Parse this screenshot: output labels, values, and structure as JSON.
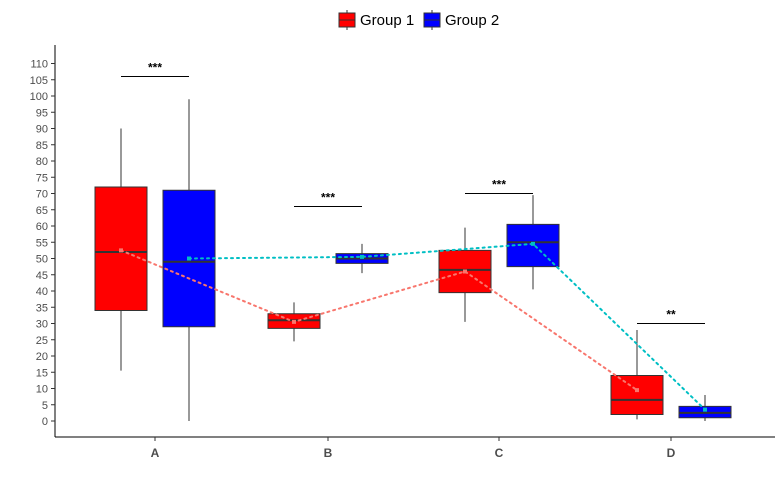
{
  "chart_data": {
    "type": "box",
    "categories": [
      "A",
      "B",
      "C",
      "D"
    ],
    "ylim": [
      -5,
      115
    ],
    "yticks": [
      0,
      5,
      10,
      15,
      20,
      25,
      30,
      35,
      40,
      45,
      50,
      55,
      60,
      65,
      70,
      75,
      80,
      85,
      90,
      95,
      100,
      105,
      110
    ],
    "grid": false,
    "legend_position": "top",
    "series": [
      {
        "name": "Group 1",
        "color": "#ff0000",
        "mean_line_color": "#f8766d",
        "boxes": [
          {
            "min": 15.5,
            "q1": 34,
            "median": 52,
            "q3": 72,
            "max": 90,
            "mean": 52.5
          },
          {
            "min": 24.5,
            "q1": 28.5,
            "median": 31,
            "q3": 33,
            "max": 36.5,
            "mean": 30.5
          },
          {
            "min": 30.5,
            "q1": 39.5,
            "median": 46.5,
            "q3": 52.5,
            "max": 59.5,
            "mean": 46
          },
          {
            "min": 0.5,
            "q1": 2,
            "median": 6.5,
            "q3": 14,
            "max": 28,
            "mean": 9.5
          }
        ]
      },
      {
        "name": "Group 2",
        "color": "#0000ff",
        "mean_line_color": "#00bfc4",
        "boxes": [
          {
            "min": 0,
            "q1": 29,
            "median": 49,
            "q3": 71,
            "max": 99,
            "mean": 50
          },
          {
            "min": 45.5,
            "q1": 48.5,
            "median": 50,
            "q3": 51.5,
            "max": 54.5,
            "mean": 50.5
          },
          {
            "min": 40.5,
            "q1": 47.5,
            "median": 55,
            "q3": 60.5,
            "max": 69.5,
            "mean": 54.5
          },
          {
            "min": 0,
            "q1": 1,
            "median": 2.5,
            "q3": 4.5,
            "max": 8,
            "mean": 3.5
          }
        ]
      }
    ],
    "significance": [
      {
        "category": "A",
        "label": "***",
        "y": 106
      },
      {
        "category": "B",
        "label": "***",
        "y": 66
      },
      {
        "category": "C",
        "label": "***",
        "y": 70
      },
      {
        "category": "D",
        "label": "**",
        "y": 30
      }
    ]
  }
}
